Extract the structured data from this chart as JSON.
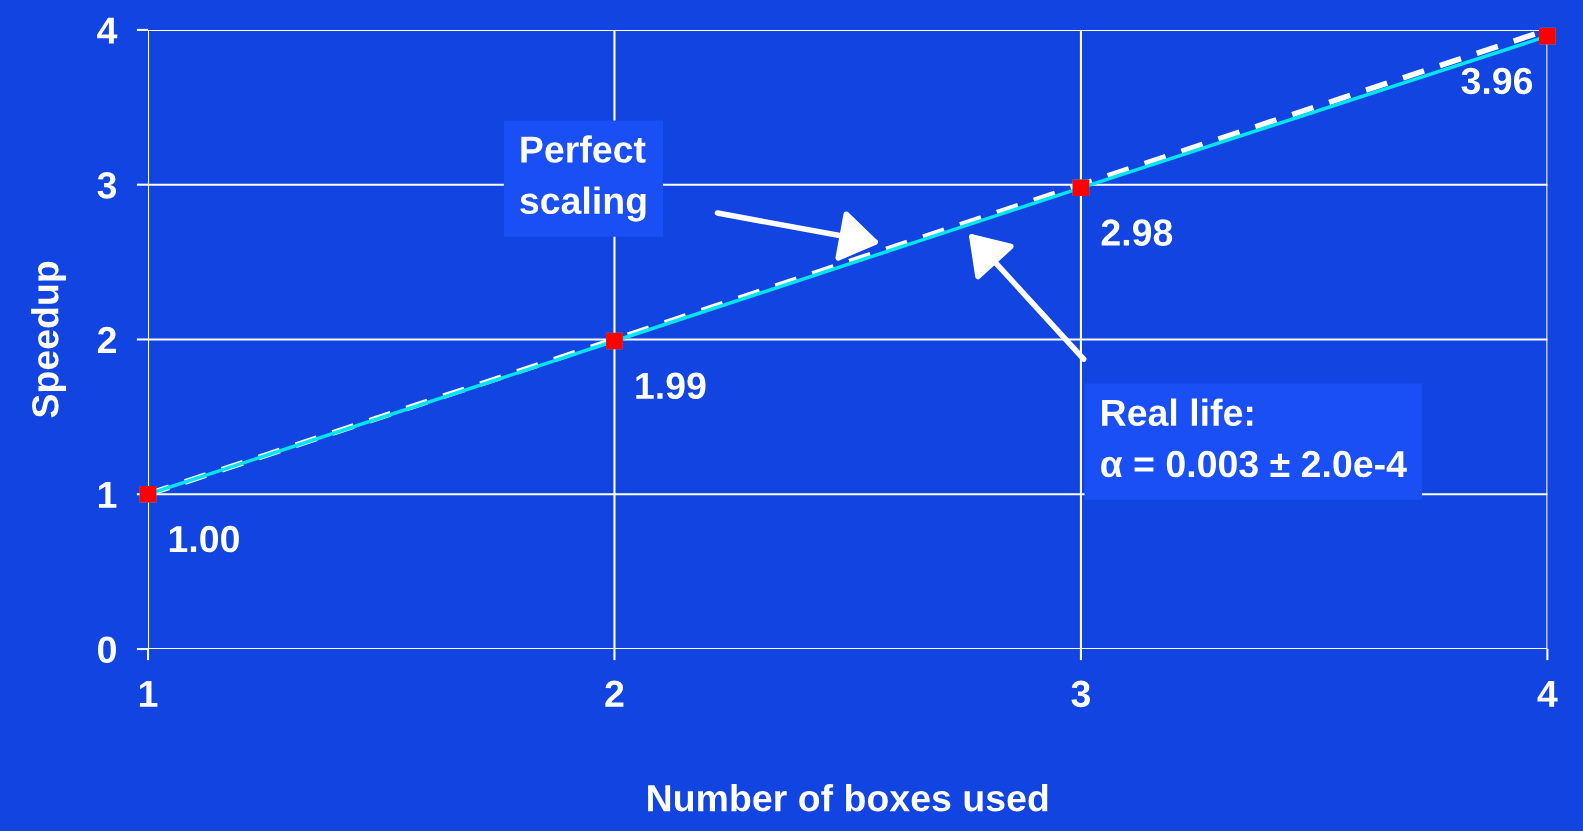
{
  "chart_data": {
    "type": "line",
    "xlabel": "Number of boxes used",
    "ylabel": "Speedup",
    "x": [
      1,
      2,
      3,
      4
    ],
    "series": [
      {
        "name": null,
        "color": "#ffffff",
        "values": [
          1,
          2,
          3,
          4
        ],
        "line_style": "dashed"
      },
      {
        "name": null,
        "color": "#00e5ee",
        "values": [
          1.0,
          1.99,
          2.98,
          3.96
        ],
        "line_style": "solid",
        "marker": "square",
        "colors": [
          "#ff0000",
          "#ff0000",
          "#ff0000",
          "#ff0000"
        ],
        "value_labels": [
          "1.00",
          "1.99",
          "2.98",
          "3.96"
        ]
      }
    ],
    "xlim": [
      1,
      4
    ],
    "ylim": [
      0,
      4
    ],
    "xticks": [
      1,
      2,
      3,
      4
    ],
    "yticks": [
      0,
      1,
      2,
      3,
      4
    ],
    "grid": true,
    "legend": false,
    "annotations": [
      "Perfect\nscaling",
      "Real life:\nα = 0.003 ± 2.0e-4"
    ]
  }
}
